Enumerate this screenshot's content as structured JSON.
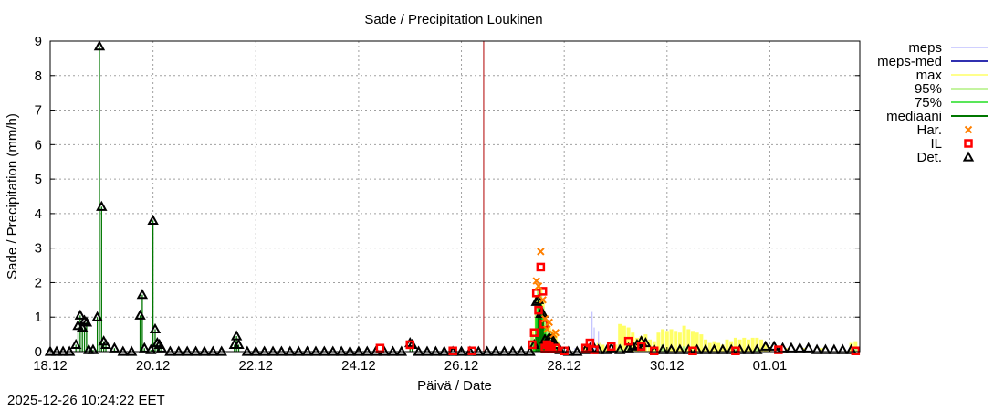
{
  "chart_data": {
    "type": "bar",
    "title": "Sade / Precipitation  Loukinen",
    "xlabel": "Päivä / Date",
    "ylabel": "Sade / Precipitation (mm/h)",
    "ylim": [
      0,
      9
    ],
    "y_ticks": [
      "0",
      "1",
      "2",
      "3",
      "4",
      "5",
      "6",
      "7",
      "8",
      "9"
    ],
    "x_unit": "hours since 18.12 00:00",
    "xlim": [
      0,
      378
    ],
    "x_ticks": [
      {
        "h": 0,
        "label": "18.12"
      },
      {
        "h": 48,
        "label": "20.12"
      },
      {
        "h": 96,
        "label": "22.12"
      },
      {
        "h": 144,
        "label": "24.12"
      },
      {
        "h": 192,
        "label": "26.12"
      },
      {
        "h": 240,
        "label": "28.12"
      },
      {
        "h": 288,
        "label": "30.12"
      },
      {
        "h": 336,
        "label": "01.01"
      }
    ],
    "grid": true,
    "legend_position": "right",
    "now_line_h": 202.4,
    "colors": {
      "meps": "#c0c0ff",
      "meps_med": "#3030b0",
      "max": "#ffff66",
      "p95": "#b0f080",
      "p75": "#22dd22",
      "median": "#007700",
      "har": "#ff8000",
      "il": "#ff0000",
      "det": "#000000",
      "now": "#b00000"
    },
    "legend": [
      {
        "key": "meps",
        "label": "meps",
        "style": "line"
      },
      {
        "key": "meps_med",
        "label": "meps-med",
        "style": "line"
      },
      {
        "key": "max",
        "label": "max",
        "style": "line"
      },
      {
        "key": "p95",
        "label": "95%",
        "style": "line"
      },
      {
        "key": "p75",
        "label": "75%",
        "style": "line"
      },
      {
        "key": "median",
        "label": "mediaani",
        "style": "line"
      },
      {
        "key": "har",
        "label": "Har.",
        "style": "cross"
      },
      {
        "key": "il",
        "label": "IL",
        "style": "square"
      },
      {
        "key": "det",
        "label": "Det.",
        "style": "triangle"
      }
    ],
    "observed_bars": [
      {
        "h": 12,
        "v": 0.2
      },
      {
        "h": 13,
        "v": 0.75
      },
      {
        "h": 14,
        "v": 1.05
      },
      {
        "h": 15,
        "v": 0.7
      },
      {
        "h": 16,
        "v": 0.9
      },
      {
        "h": 17,
        "v": 0.85
      },
      {
        "h": 18,
        "v": 0.05
      },
      {
        "h": 20,
        "v": 0.05
      },
      {
        "h": 22,
        "v": 1.0
      },
      {
        "h": 23,
        "v": 8.85
      },
      {
        "h": 24,
        "v": 4.2
      },
      {
        "h": 25,
        "v": 0.3
      },
      {
        "h": 26,
        "v": 0.2
      },
      {
        "h": 30,
        "v": 0.1
      },
      {
        "h": 42,
        "v": 1.05
      },
      {
        "h": 43,
        "v": 1.65
      },
      {
        "h": 44,
        "v": 0.1
      },
      {
        "h": 47,
        "v": 0.05
      },
      {
        "h": 48,
        "v": 3.8
      },
      {
        "h": 49,
        "v": 0.65
      },
      {
        "h": 50,
        "v": 0.25
      },
      {
        "h": 51,
        "v": 0.2
      },
      {
        "h": 52,
        "v": 0.1
      },
      {
        "h": 86,
        "v": 0.2
      },
      {
        "h": 87,
        "v": 0.45
      },
      {
        "h": 88,
        "v": 0.2
      },
      {
        "h": 168,
        "v": 0.25
      },
      {
        "h": 169,
        "v": 0.2
      }
    ],
    "ens_max": [
      {
        "h": 225,
        "v": 0.6
      },
      {
        "h": 227,
        "v": 1.6
      },
      {
        "h": 228,
        "v": 1.9
      },
      {
        "h": 229,
        "v": 1.8
      },
      {
        "h": 230,
        "v": 1.5
      },
      {
        "h": 231,
        "v": 1.1
      },
      {
        "h": 232,
        "v": 0.9
      },
      {
        "h": 233,
        "v": 0.7
      },
      {
        "h": 234,
        "v": 0.6
      },
      {
        "h": 235,
        "v": 0.6
      },
      {
        "h": 236,
        "v": 0.5
      },
      {
        "h": 237,
        "v": 0.3
      },
      {
        "h": 250,
        "v": 0.2
      },
      {
        "h": 256,
        "v": 0.25
      },
      {
        "h": 258,
        "v": 0.2
      },
      {
        "h": 260,
        "v": 0.15
      },
      {
        "h": 264,
        "v": 0.2
      },
      {
        "h": 266,
        "v": 0.8
      },
      {
        "h": 268,
        "v": 0.75
      },
      {
        "h": 270,
        "v": 0.7
      },
      {
        "h": 272,
        "v": 0.55
      },
      {
        "h": 274,
        "v": 0.4
      },
      {
        "h": 276,
        "v": 0.45
      },
      {
        "h": 278,
        "v": 0.5
      },
      {
        "h": 280,
        "v": 0.35
      },
      {
        "h": 282,
        "v": 0.3
      },
      {
        "h": 284,
        "v": 0.55
      },
      {
        "h": 286,
        "v": 0.65
      },
      {
        "h": 288,
        "v": 0.6
      },
      {
        "h": 290,
        "v": 0.65
      },
      {
        "h": 292,
        "v": 0.6
      },
      {
        "h": 294,
        "v": 0.55
      },
      {
        "h": 296,
        "v": 0.75
      },
      {
        "h": 298,
        "v": 0.65
      },
      {
        "h": 300,
        "v": 0.6
      },
      {
        "h": 302,
        "v": 0.55
      },
      {
        "h": 304,
        "v": 0.5
      },
      {
        "h": 306,
        "v": 0.35
      },
      {
        "h": 308,
        "v": 0.25
      },
      {
        "h": 310,
        "v": 0.3
      },
      {
        "h": 312,
        "v": 0.25
      },
      {
        "h": 314,
        "v": 0.2
      },
      {
        "h": 316,
        "v": 0.35
      },
      {
        "h": 318,
        "v": 0.3
      },
      {
        "h": 320,
        "v": 0.4
      },
      {
        "h": 322,
        "v": 0.35
      },
      {
        "h": 324,
        "v": 0.4
      },
      {
        "h": 326,
        "v": 0.35
      },
      {
        "h": 328,
        "v": 0.4
      },
      {
        "h": 330,
        "v": 0.4
      },
      {
        "h": 332,
        "v": 0.35
      },
      {
        "h": 334,
        "v": 0.2
      },
      {
        "h": 336,
        "v": 0.15
      },
      {
        "h": 344,
        "v": 0.1
      },
      {
        "h": 352,
        "v": 0.1
      },
      {
        "h": 360,
        "v": 0.1
      },
      {
        "h": 374,
        "v": 0.25
      },
      {
        "h": 376,
        "v": 0.3
      }
    ],
    "ens_p95": [
      {
        "h": 225,
        "v": 0.5
      },
      {
        "h": 227,
        "v": 1.4
      },
      {
        "h": 228,
        "v": 1.8
      },
      {
        "h": 229,
        "v": 1.7
      },
      {
        "h": 230,
        "v": 1.3
      },
      {
        "h": 231,
        "v": 1.0
      },
      {
        "h": 232,
        "v": 0.8
      },
      {
        "h": 233,
        "v": 0.6
      },
      {
        "h": 234,
        "v": 0.5
      },
      {
        "h": 235,
        "v": 0.4
      },
      {
        "h": 236,
        "v": 0.3
      },
      {
        "h": 256,
        "v": 0.1
      },
      {
        "h": 266,
        "v": 0.2
      },
      {
        "h": 270,
        "v": 0.15
      },
      {
        "h": 286,
        "v": 0.2
      },
      {
        "h": 296,
        "v": 0.15
      },
      {
        "h": 320,
        "v": 0.15
      },
      {
        "h": 330,
        "v": 0.15
      },
      {
        "h": 376,
        "v": 0.1
      }
    ],
    "ens_p75": [
      {
        "h": 226,
        "v": 0.3
      },
      {
        "h": 227,
        "v": 1.0
      },
      {
        "h": 228,
        "v": 1.5
      },
      {
        "h": 229,
        "v": 1.4
      },
      {
        "h": 230,
        "v": 1.1
      },
      {
        "h": 231,
        "v": 0.7
      },
      {
        "h": 232,
        "v": 0.5
      },
      {
        "h": 233,
        "v": 0.35
      },
      {
        "h": 234,
        "v": 0.3
      },
      {
        "h": 235,
        "v": 0.2
      },
      {
        "h": 236,
        "v": 0.1
      }
    ],
    "ens_median": [
      {
        "h": 227,
        "v": 0.5
      },
      {
        "h": 228,
        "v": 1.0
      },
      {
        "h": 229,
        "v": 1.2
      },
      {
        "h": 230,
        "v": 0.9
      },
      {
        "h": 231,
        "v": 0.5
      },
      {
        "h": 232,
        "v": 0.3
      },
      {
        "h": 233,
        "v": 0.2
      },
      {
        "h": 234,
        "v": 0.1
      }
    ],
    "meps_spikes": [
      {
        "h": 253,
        "v": 1.15
      },
      {
        "h": 254,
        "v": 0.7
      },
      {
        "h": 256,
        "v": 0.6
      },
      {
        "h": 245,
        "v": 0.1
      }
    ],
    "det_points": [
      {
        "h": 0,
        "v": 0
      },
      {
        "h": 3,
        "v": 0
      },
      {
        "h": 6,
        "v": 0
      },
      {
        "h": 9,
        "v": 0
      },
      {
        "h": 12,
        "v": 0.2
      },
      {
        "h": 13,
        "v": 0.75
      },
      {
        "h": 14,
        "v": 1.05
      },
      {
        "h": 15,
        "v": 0.7
      },
      {
        "h": 16,
        "v": 0.9
      },
      {
        "h": 17,
        "v": 0.85
      },
      {
        "h": 18,
        "v": 0.05
      },
      {
        "h": 20,
        "v": 0.05
      },
      {
        "h": 22,
        "v": 1.0
      },
      {
        "h": 23,
        "v": 8.85
      },
      {
        "h": 24,
        "v": 4.2
      },
      {
        "h": 25,
        "v": 0.3
      },
      {
        "h": 26,
        "v": 0.2
      },
      {
        "h": 30,
        "v": 0.1
      },
      {
        "h": 34,
        "v": 0
      },
      {
        "h": 38,
        "v": 0
      },
      {
        "h": 42,
        "v": 1.05
      },
      {
        "h": 43,
        "v": 1.65
      },
      {
        "h": 44,
        "v": 0.1
      },
      {
        "h": 47,
        "v": 0.05
      },
      {
        "h": 48,
        "v": 3.8
      },
      {
        "h": 49,
        "v": 0.65
      },
      {
        "h": 50,
        "v": 0.25
      },
      {
        "h": 51,
        "v": 0.2
      },
      {
        "h": 52,
        "v": 0.1
      },
      {
        "h": 56,
        "v": 0
      },
      {
        "h": 60,
        "v": 0
      },
      {
        "h": 64,
        "v": 0
      },
      {
        "h": 68,
        "v": 0
      },
      {
        "h": 72,
        "v": 0
      },
      {
        "h": 76,
        "v": 0
      },
      {
        "h": 80,
        "v": 0
      },
      {
        "h": 86,
        "v": 0.2
      },
      {
        "h": 87,
        "v": 0.45
      },
      {
        "h": 88,
        "v": 0.2
      },
      {
        "h": 92,
        "v": 0
      },
      {
        "h": 96,
        "v": 0
      },
      {
        "h": 100,
        "v": 0
      },
      {
        "h": 104,
        "v": 0
      },
      {
        "h": 108,
        "v": 0
      },
      {
        "h": 112,
        "v": 0
      },
      {
        "h": 116,
        "v": 0
      },
      {
        "h": 120,
        "v": 0
      },
      {
        "h": 124,
        "v": 0
      },
      {
        "h": 128,
        "v": 0
      },
      {
        "h": 132,
        "v": 0
      },
      {
        "h": 136,
        "v": 0
      },
      {
        "h": 140,
        "v": 0
      },
      {
        "h": 144,
        "v": 0
      },
      {
        "h": 148,
        "v": 0
      },
      {
        "h": 152,
        "v": 0
      },
      {
        "h": 156,
        "v": 0
      },
      {
        "h": 160,
        "v": 0
      },
      {
        "h": 164,
        "v": 0
      },
      {
        "h": 168,
        "v": 0.25
      },
      {
        "h": 169,
        "v": 0.2
      },
      {
        "h": 172,
        "v": 0
      },
      {
        "h": 176,
        "v": 0
      },
      {
        "h": 180,
        "v": 0
      },
      {
        "h": 184,
        "v": 0
      },
      {
        "h": 188,
        "v": 0
      },
      {
        "h": 192,
        "v": 0
      },
      {
        "h": 196,
        "v": 0
      },
      {
        "h": 200,
        "v": 0
      },
      {
        "h": 204,
        "v": 0
      },
      {
        "h": 208,
        "v": 0
      },
      {
        "h": 212,
        "v": 0
      },
      {
        "h": 216,
        "v": 0
      },
      {
        "h": 220,
        "v": 0
      },
      {
        "h": 224,
        "v": 0
      },
      {
        "h": 226,
        "v": 0.2
      },
      {
        "h": 227,
        "v": 1.45
      },
      {
        "h": 228,
        "v": 1.5
      },
      {
        "h": 229,
        "v": 1.1
      },
      {
        "h": 230,
        "v": 1.1
      },
      {
        "h": 231,
        "v": 0.35
      },
      {
        "h": 232,
        "v": 0.3
      },
      {
        "h": 233,
        "v": 0.4
      },
      {
        "h": 234,
        "v": 0.35
      },
      {
        "h": 235,
        "v": 0.3
      },
      {
        "h": 236,
        "v": 0.2
      },
      {
        "h": 238,
        "v": 0.05
      },
      {
        "h": 242,
        "v": 0
      },
      {
        "h": 246,
        "v": 0
      },
      {
        "h": 250,
        "v": 0.05
      },
      {
        "h": 252,
        "v": 0.1
      },
      {
        "h": 254,
        "v": 0.1
      },
      {
        "h": 256,
        "v": 0.05
      },
      {
        "h": 260,
        "v": 0.05
      },
      {
        "h": 262,
        "v": 0.1
      },
      {
        "h": 266,
        "v": 0.05
      },
      {
        "h": 270,
        "v": 0.1
      },
      {
        "h": 272,
        "v": 0.15
      },
      {
        "h": 274,
        "v": 0.2
      },
      {
        "h": 276,
        "v": 0.3
      },
      {
        "h": 278,
        "v": 0.25
      },
      {
        "h": 282,
        "v": 0.05
      },
      {
        "h": 286,
        "v": 0.05
      },
      {
        "h": 290,
        "v": 0.05
      },
      {
        "h": 294,
        "v": 0.05
      },
      {
        "h": 298,
        "v": 0.05
      },
      {
        "h": 302,
        "v": 0.05
      },
      {
        "h": 306,
        "v": 0.05
      },
      {
        "h": 310,
        "v": 0.05
      },
      {
        "h": 314,
        "v": 0.05
      },
      {
        "h": 318,
        "v": 0.05
      },
      {
        "h": 322,
        "v": 0.05
      },
      {
        "h": 326,
        "v": 0.05
      },
      {
        "h": 330,
        "v": 0.05
      },
      {
        "h": 334,
        "v": 0.15
      },
      {
        "h": 338,
        "v": 0.15
      },
      {
        "h": 342,
        "v": 0.1
      },
      {
        "h": 346,
        "v": 0.1
      },
      {
        "h": 350,
        "v": 0.1
      },
      {
        "h": 354,
        "v": 0.1
      },
      {
        "h": 358,
        "v": 0.05
      },
      {
        "h": 362,
        "v": 0.05
      },
      {
        "h": 366,
        "v": 0.05
      },
      {
        "h": 370,
        "v": 0.05
      },
      {
        "h": 374,
        "v": 0.05
      }
    ],
    "il_points": [
      {
        "h": 154,
        "v": 0.1
      },
      {
        "h": 168,
        "v": 0.2
      },
      {
        "h": 188,
        "v": 0.02
      },
      {
        "h": 197,
        "v": 0.02
      },
      {
        "h": 225,
        "v": 0.2
      },
      {
        "h": 226,
        "v": 0.55
      },
      {
        "h": 227,
        "v": 1.7
      },
      {
        "h": 228,
        "v": 1.2
      },
      {
        "h": 229,
        "v": 2.45
      },
      {
        "h": 230,
        "v": 1.75
      },
      {
        "h": 230.5,
        "v": 0.8
      },
      {
        "h": 231,
        "v": 0.1
      },
      {
        "h": 232,
        "v": 0.2
      },
      {
        "h": 233,
        "v": 0.15
      },
      {
        "h": 234,
        "v": 0.1
      },
      {
        "h": 236,
        "v": 0.1
      },
      {
        "h": 240,
        "v": 0.02
      },
      {
        "h": 250,
        "v": 0.1
      },
      {
        "h": 252,
        "v": 0.25
      },
      {
        "h": 254,
        "v": 0.05
      },
      {
        "h": 262,
        "v": 0.15
      },
      {
        "h": 270,
        "v": 0.3
      },
      {
        "h": 276,
        "v": 0.15
      },
      {
        "h": 282,
        "v": 0.02
      },
      {
        "h": 300,
        "v": 0.02
      },
      {
        "h": 320,
        "v": 0.02
      },
      {
        "h": 340,
        "v": 0.05
      },
      {
        "h": 376,
        "v": 0.02
      }
    ],
    "har_points": [
      {
        "h": 227,
        "v": 2.05
      },
      {
        "h": 228,
        "v": 1.9
      },
      {
        "h": 229,
        "v": 2.9
      },
      {
        "h": 230,
        "v": 1.5
      },
      {
        "h": 231,
        "v": 0.95
      },
      {
        "h": 232,
        "v": 0.65
      },
      {
        "h": 233,
        "v": 0.85
      },
      {
        "h": 235,
        "v": 0.5
      },
      {
        "h": 236,
        "v": 0.55
      }
    ]
  },
  "timestamp": "2025-12-26 10:24:22 EET"
}
